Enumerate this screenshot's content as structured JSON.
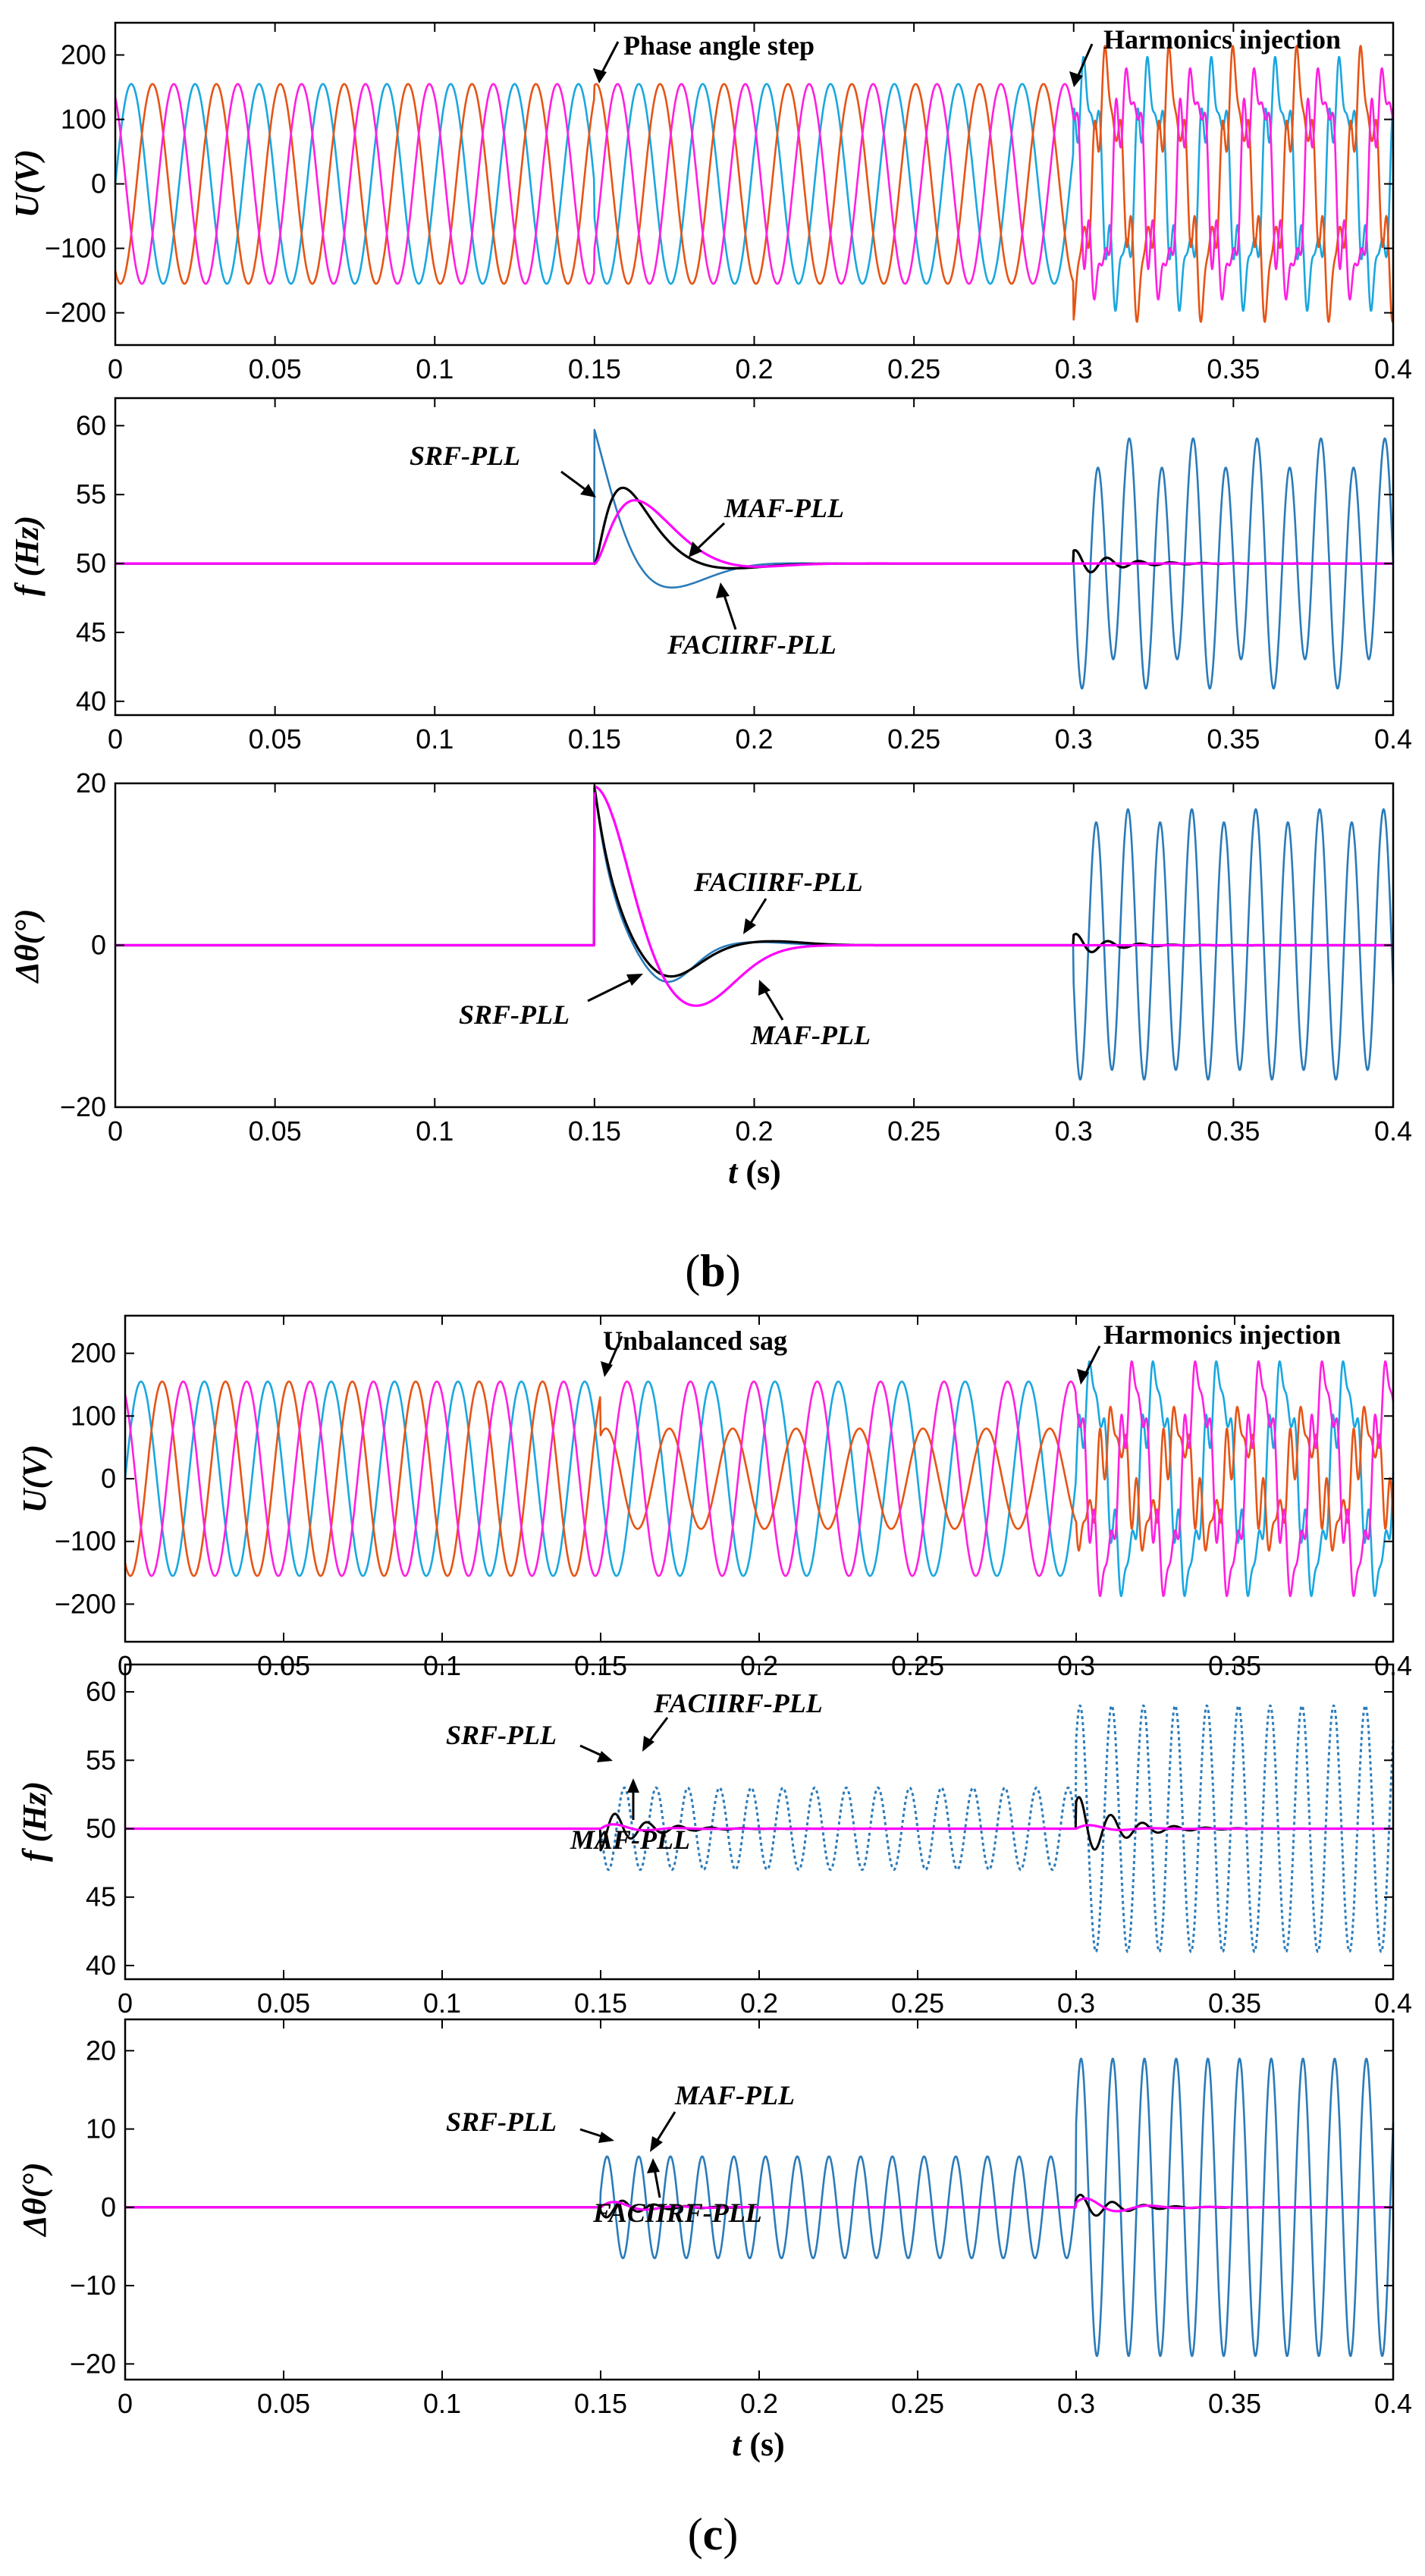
{
  "colors": {
    "phase_a": "#1AA7E0",
    "phase_b": "#E65414",
    "phase_c": "#FF1FE0",
    "srf": "#2B7BB9",
    "faciirf": "#000000",
    "maf": "#FF00FF"
  },
  "panels": [
    {
      "label": "b"
    },
    {
      "label": "c"
    }
  ],
  "chart_data": [
    {
      "type": "line",
      "panel": "b",
      "ylabel": "U(V)",
      "xlim": [
        0,
        0.4
      ],
      "ylim": [
        -250,
        250
      ],
      "xticks": [
        "0",
        "0.05",
        "0.1",
        "0.15",
        "0.2",
        "0.25",
        "0.3",
        "0.35",
        "0.4"
      ],
      "yticks": [
        "-200",
        "-100",
        "0",
        "100",
        "200"
      ],
      "annotations": [
        "Phase angle step",
        "Harmonics injection"
      ],
      "series": [
        {
          "amplitude": 155,
          "frequency_hz": 50,
          "phase_deg": 0,
          "phase_step_deg_at_0_15s": 20,
          "harmonics_from_0_3s": true
        },
        {
          "amplitude": 155,
          "frequency_hz": 50,
          "phase_deg": -120,
          "phase_step_deg_at_0_15s": 20,
          "harmonics_from_0_3s": true
        },
        {
          "amplitude": 155,
          "frequency_hz": 50,
          "phase_deg": 120,
          "phase_step_deg_at_0_15s": 20,
          "harmonics_from_0_3s": true
        }
      ]
    },
    {
      "type": "line",
      "panel": "b",
      "ylabel": "f (Hz)",
      "xlim": [
        0,
        0.4
      ],
      "ylim": [
        39,
        62
      ],
      "xticks": [
        "0",
        "0.05",
        "0.1",
        "0.15",
        "0.2",
        "0.25",
        "0.3",
        "0.35",
        "0.4"
      ],
      "yticks": [
        "40",
        "45",
        "50",
        "55",
        "60"
      ],
      "annotations": [
        "SRF-PLL",
        "MAF-PLL",
        "FACIIRF-PLL"
      ],
      "series": [
        {
          "name": "SRF-PLL",
          "baseline": 50,
          "step_peak": 59.8,
          "t_step": 0.15,
          "undershoot": 49.3,
          "settle_s": 0.23,
          "harmonic_osc_amplitude": 8,
          "harmonic_osc_hz": 100
        },
        {
          "name": "FACIIRF-PLL",
          "baseline": 50,
          "step_peak": 55.6,
          "t_peak": 0.159,
          "undershoot": 49.4,
          "settle_s": 0.23,
          "harmonic_osc_amplitude": 0.6
        },
        {
          "name": "MAF-PLL",
          "baseline": 50,
          "step_peak": 54.7,
          "t_peak": 0.163,
          "undershoot": 49.3,
          "settle_s": 0.23,
          "harmonic_osc_amplitude": 0
        }
      ]
    },
    {
      "type": "line",
      "panel": "b",
      "ylabel": "Δθ(°)",
      "xlabel": "t (s)",
      "xlim": [
        0,
        0.4
      ],
      "ylim": [
        -20,
        20
      ],
      "xticks": [
        "0",
        "0.05",
        "0.1",
        "0.15",
        "0.2",
        "0.25",
        "0.3",
        "0.35",
        "0.4"
      ],
      "yticks": [
        "-20",
        "0",
        "20"
      ],
      "annotations": [
        "FACIIRF-PLL",
        "SRF-PLL",
        "MAF-PLL"
      ],
      "series": [
        {
          "name": "SRF-PLL",
          "baseline": 0,
          "step_value": 20,
          "t_step": 0.15,
          "min": -5,
          "harmonic_osc_amplitude": 16
        },
        {
          "name": "FACIIRF-PLL",
          "baseline": 0,
          "step_value": 20,
          "t_step": 0.15,
          "min": -4.5,
          "harmonic_osc_amplitude": 1.5
        },
        {
          "name": "MAF-PLL",
          "baseline": 0,
          "step_value": 20,
          "t_step": 0.15,
          "min": -7.5,
          "t_min": 0.181,
          "harmonic_osc_amplitude": 0
        }
      ]
    },
    {
      "type": "line",
      "panel": "c",
      "ylabel": "U(V)",
      "xlim": [
        0,
        0.4
      ],
      "ylim": [
        -260,
        260
      ],
      "xticks": [
        "0",
        "0.05",
        "0.1",
        "0.15",
        "0.2",
        "0.25",
        "0.3",
        "0.35",
        "0.4"
      ],
      "yticks": [
        "-200",
        "-100",
        "0",
        "100",
        "200"
      ],
      "annotations": [
        "Unbalanced sag",
        "Harmonics injection"
      ],
      "series": [
        {
          "amplitude": 155,
          "amplitude_after_0_15s": 155,
          "frequency_hz": 50,
          "phase_deg": 0,
          "harmonics_from_0_3s": true
        },
        {
          "amplitude": 155,
          "amplitude_after_0_15s": 80,
          "frequency_hz": 50,
          "phase_deg": -120,
          "harmonics_from_0_3s": true
        },
        {
          "amplitude": 155,
          "amplitude_after_0_15s": 155,
          "frequency_hz": 50,
          "phase_deg": 120,
          "harmonics_from_0_3s": true
        }
      ]
    },
    {
      "type": "line",
      "panel": "c",
      "ylabel": "f (Hz)",
      "xlim": [
        0,
        0.4
      ],
      "ylim": [
        39,
        62
      ],
      "xticks": [
        "0",
        "0.05",
        "0.1",
        "0.15",
        "0.2",
        "0.25",
        "0.3",
        "0.35",
        "0.4"
      ],
      "yticks": [
        "40",
        "45",
        "50",
        "55",
        "60"
      ],
      "annotations": [
        "SRF-PLL",
        "FACIIRF-PLL",
        "MAF-PLL"
      ],
      "series": [
        {
          "name": "SRF-PLL",
          "baseline": 50,
          "dotted": true,
          "osc_amplitude_after_0_15s": 3,
          "osc_amplitude_after_0_3s": 9,
          "osc_hz": 100
        },
        {
          "name": "FACIIRF-PLL",
          "baseline": 50,
          "transient_peak": 51.6,
          "transient_amplitude_at_0_3s": 2.5
        },
        {
          "name": "MAF-PLL",
          "baseline": 50,
          "transient_peak": 50.5
        }
      ]
    },
    {
      "type": "line",
      "panel": "c",
      "ylabel": "Δθ(°)",
      "xlabel": "t (s)",
      "xlim": [
        0,
        0.4
      ],
      "ylim": [
        -22,
        24
      ],
      "xticks": [
        "0",
        "0.05",
        "0.1",
        "0.15",
        "0.2",
        "0.25",
        "0.3",
        "0.35",
        "0.4"
      ],
      "yticks": [
        "-20",
        "-10",
        "0",
        "10",
        "20"
      ],
      "annotations": [
        "SRF-PLL",
        "MAF-PLL",
        "FACIIRF-PLL"
      ],
      "series": [
        {
          "name": "SRF-PLL",
          "baseline": 0,
          "osc_amplitude_after_0_15s": 6.5,
          "osc_amplitude_after_0_3s": 19,
          "osc_hz": 100
        },
        {
          "name": "FACIIRF-PLL",
          "baseline": 0,
          "transient_amplitude": 1.5
        },
        {
          "name": "MAF-PLL",
          "baseline": 0,
          "transient_amplitude": 1.0
        }
      ]
    }
  ]
}
